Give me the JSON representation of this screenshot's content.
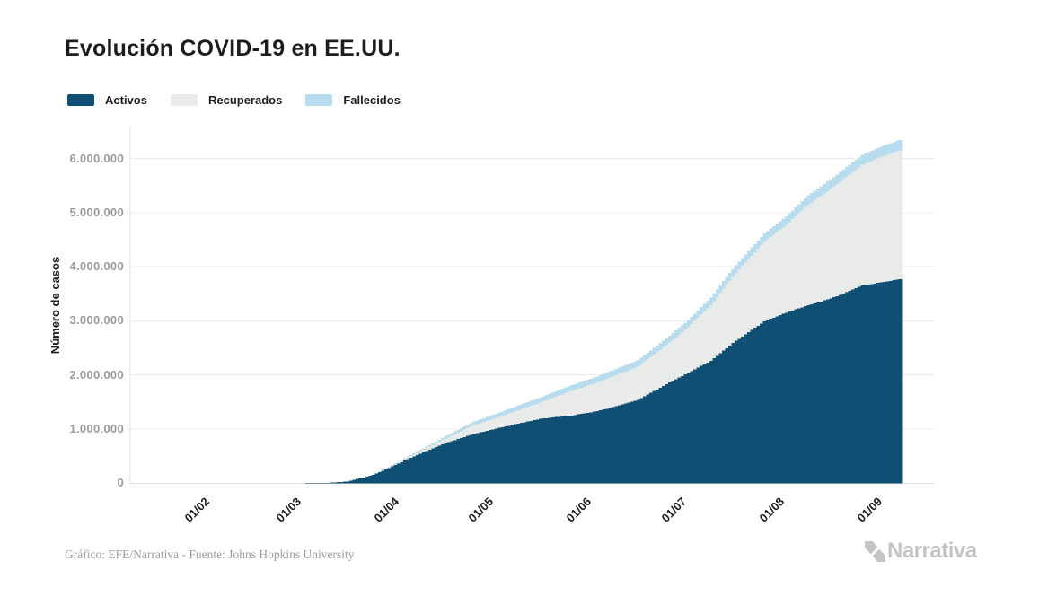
{
  "footer": {
    "credit": "Gráfico: EFE/Narrativa - Fuente: Johns Hopkins University",
    "logo_text": "Narrativa"
  },
  "chart_data": {
    "type": "area",
    "stacked": true,
    "title": "Evolución COVID-19 en EE.UU.",
    "xlabel": "",
    "ylabel": "Número de casos",
    "legend_position": "top-left",
    "grid": "horizontal",
    "ylim": [
      0,
      6600000
    ],
    "x_domain": [
      "2020-01-13",
      "2020-09-24"
    ],
    "series": [
      {
        "key": "activos",
        "name": "Activos",
        "color": "#0f4f73"
      },
      {
        "key": "recuperados",
        "name": "Recuperados",
        "color": "#e9eaea"
      },
      {
        "key": "fallecidos",
        "name": "Fallecidos",
        "color": "#b7dcee"
      }
    ],
    "y_ticks": [
      {
        "value": 0,
        "label": "0"
      },
      {
        "value": 1000000,
        "label": "1.000.000"
      },
      {
        "value": 2000000,
        "label": "2.000.000"
      },
      {
        "value": 3000000,
        "label": "3.000.000"
      },
      {
        "value": 4000000,
        "label": "4.000.000"
      },
      {
        "value": 5000000,
        "label": "5.000.000"
      },
      {
        "value": 6000000,
        "label": "6.000.000"
      }
    ],
    "x_ticks": [
      {
        "date": "2020-02-01",
        "label": "01/02"
      },
      {
        "date": "2020-03-01",
        "label": "01/03"
      },
      {
        "date": "2020-04-01",
        "label": "01/04"
      },
      {
        "date": "2020-05-01",
        "label": "01/05"
      },
      {
        "date": "2020-06-01",
        "label": "01/06"
      },
      {
        "date": "2020-07-01",
        "label": "01/07"
      },
      {
        "date": "2020-08-01",
        "label": "01/08"
      },
      {
        "date": "2020-09-01",
        "label": "01/09"
      }
    ],
    "points": [
      {
        "date": "2020-03-08",
        "activos": 500,
        "recuperados": 10,
        "fallecidos": 20
      },
      {
        "date": "2020-03-15",
        "activos": 3000,
        "recuperados": 60,
        "fallecidos": 60
      },
      {
        "date": "2020-03-22",
        "activos": 31000,
        "recuperados": 200,
        "fallecidos": 420
      },
      {
        "date": "2020-03-29",
        "activos": 135000,
        "recuperados": 4600,
        "fallecidos": 2500
      },
      {
        "date": "2020-04-01",
        "activos": 200000,
        "recuperados": 8900,
        "fallecidos": 5100
      },
      {
        "date": "2020-04-08",
        "activos": 390000,
        "recuperados": 23000,
        "fallecidos": 14800
      },
      {
        "date": "2020-04-15",
        "activos": 570000,
        "recuperados": 48000,
        "fallecidos": 28300
      },
      {
        "date": "2020-04-22",
        "activos": 740000,
        "recuperados": 77000,
        "fallecidos": 46600
      },
      {
        "date": "2020-05-01",
        "activos": 910000,
        "recuperados": 164000,
        "fallecidos": 65000
      },
      {
        "date": "2020-05-08",
        "activos": 1010000,
        "recuperados": 195000,
        "fallecidos": 77000
      },
      {
        "date": "2020-05-15",
        "activos": 1100000,
        "recuperados": 250000,
        "fallecidos": 86000
      },
      {
        "date": "2020-05-22",
        "activos": 1190000,
        "recuperados": 298000,
        "fallecidos": 95000
      },
      {
        "date": "2020-06-01",
        "activos": 1250000,
        "recuperados": 458000,
        "fallecidos": 105000
      },
      {
        "date": "2020-06-08",
        "activos": 1320000,
        "recuperados": 520000,
        "fallecidos": 111000
      },
      {
        "date": "2020-06-15",
        "activos": 1420000,
        "recuperados": 576000,
        "fallecidos": 116000
      },
      {
        "date": "2020-06-22",
        "activos": 1540000,
        "recuperados": 617000,
        "fallecidos": 120000
      },
      {
        "date": "2020-07-01",
        "activos": 1830000,
        "recuperados": 720000,
        "fallecidos": 128000
      },
      {
        "date": "2020-07-08",
        "activos": 2040000,
        "recuperados": 845000,
        "fallecidos": 132000
      },
      {
        "date": "2020-07-15",
        "activos": 2260000,
        "recuperados": 1030000,
        "fallecidos": 137000
      },
      {
        "date": "2020-07-22",
        "activos": 2590000,
        "recuperados": 1230000,
        "fallecidos": 143000
      },
      {
        "date": "2020-08-01",
        "activos": 2990000,
        "recuperados": 1470000,
        "fallecidos": 155000
      },
      {
        "date": "2020-08-08",
        "activos": 3150000,
        "recuperados": 1620000,
        "fallecidos": 161000
      },
      {
        "date": "2020-08-15",
        "activos": 3290000,
        "recuperados": 1860000,
        "fallecidos": 169000
      },
      {
        "date": "2020-08-22",
        "activos": 3410000,
        "recuperados": 2030000,
        "fallecidos": 176000
      },
      {
        "date": "2020-09-01",
        "activos": 3650000,
        "recuperados": 2230000,
        "fallecidos": 184000
      },
      {
        "date": "2020-09-08",
        "activos": 3720000,
        "recuperados": 2330000,
        "fallecidos": 188000
      },
      {
        "date": "2020-09-13",
        "activos": 3770000,
        "recuperados": 2380000,
        "fallecidos": 191000
      }
    ]
  }
}
